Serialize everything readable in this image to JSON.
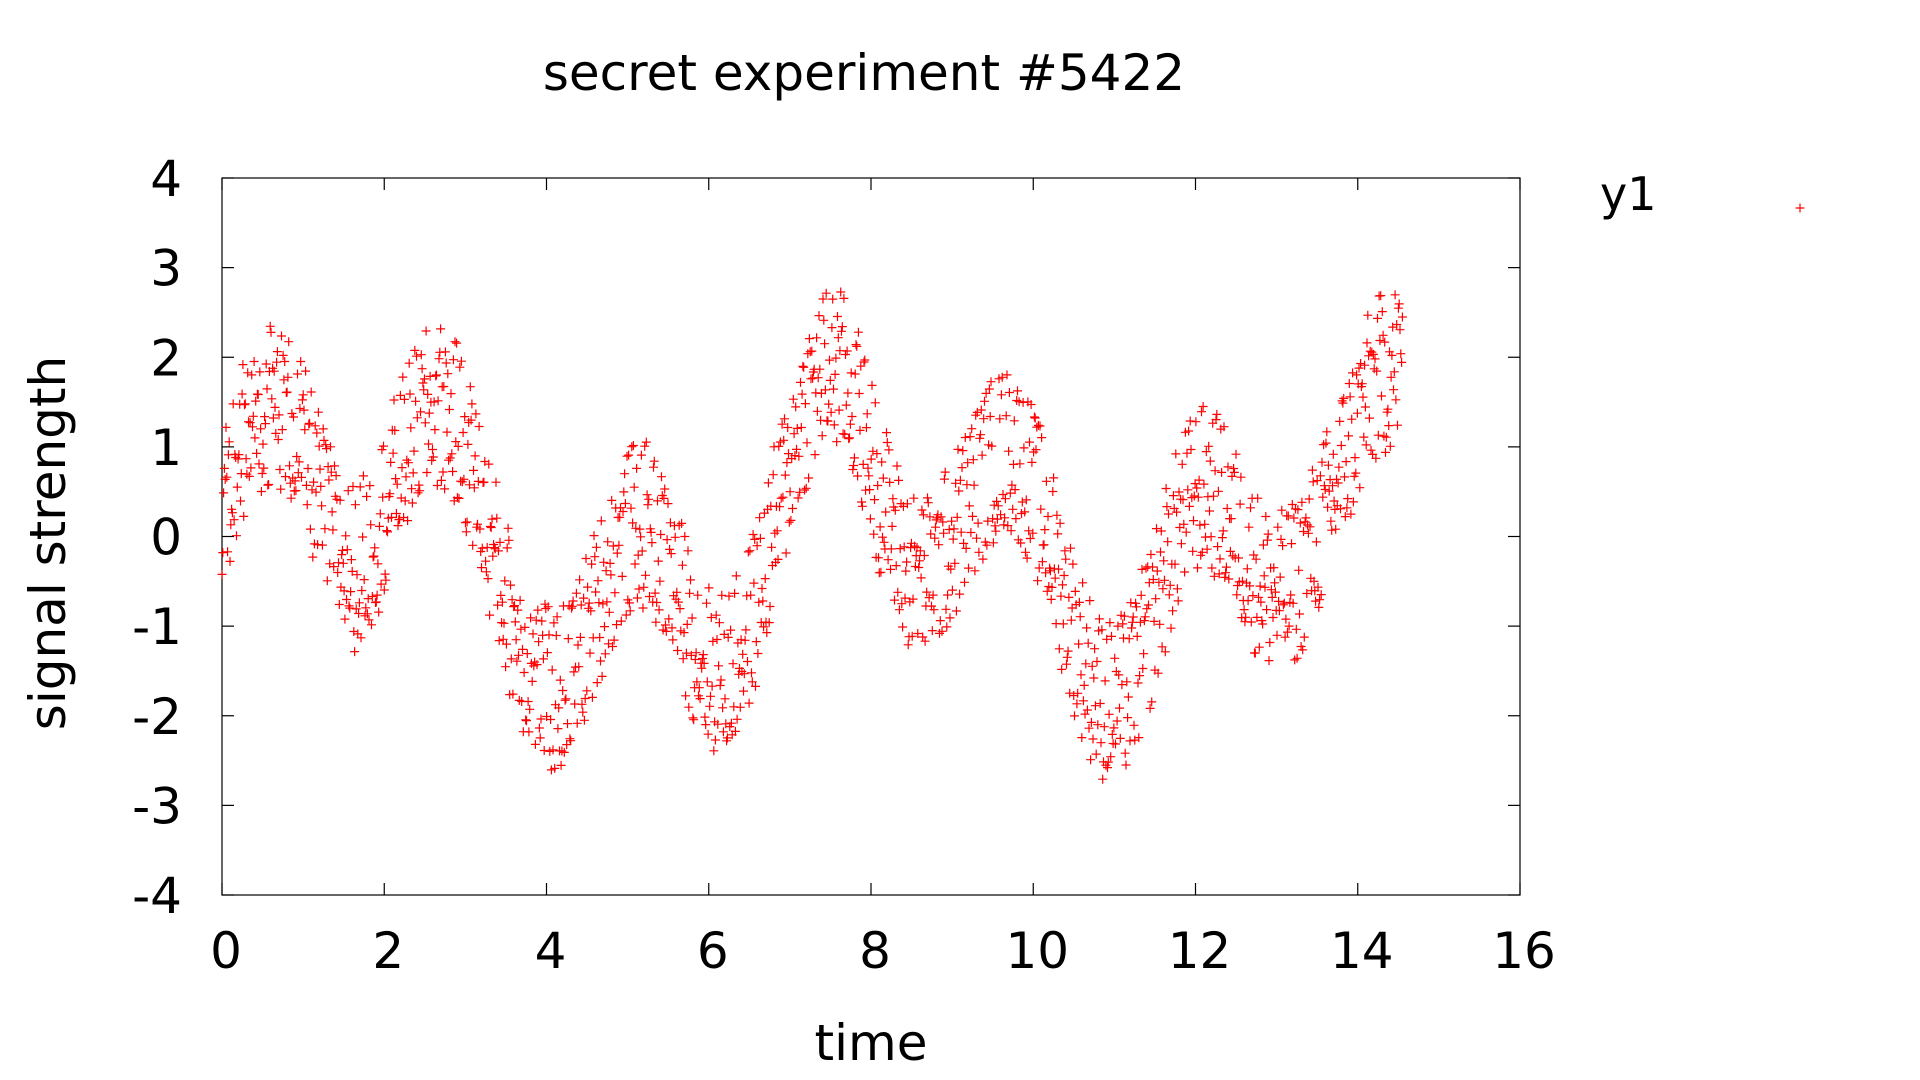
{
  "chart_data": {
    "type": "scatter",
    "title": "secret experiment #5422",
    "xlabel": "time",
    "ylabel": "signal strength",
    "xlim": [
      0,
      16
    ],
    "ylim": [
      -4,
      4
    ],
    "xticks": [
      "0",
      "2",
      "4",
      "6",
      "8",
      "10",
      "12",
      "14",
      "16"
    ],
    "yticks": [
      "4",
      "3",
      "2",
      "1",
      "0",
      "-1",
      "-2",
      "-3",
      "-4"
    ],
    "grid": false,
    "legend_position": "outside-right",
    "marker": "+",
    "color": "#ff0000",
    "series": [
      {
        "name": "y1",
        "x": [
          0.0,
          0.15,
          0.3,
          0.45,
          0.6,
          0.75,
          0.9,
          1.05,
          1.2,
          1.35,
          1.5,
          1.65,
          1.8,
          1.95,
          2.1,
          2.25,
          2.4,
          2.55,
          2.7,
          2.85,
          3.0,
          3.15,
          3.3,
          3.45,
          3.6,
          3.75,
          3.9,
          4.05,
          4.2,
          4.35,
          4.5,
          4.65,
          4.8,
          4.95,
          5.1,
          5.25,
          5.4,
          5.55,
          5.7,
          5.85,
          6.0,
          6.15,
          6.3,
          6.45,
          6.6,
          6.75,
          6.9,
          7.05,
          7.2,
          7.35,
          7.5,
          7.65,
          7.8,
          7.95,
          8.1,
          8.25,
          8.4,
          8.55,
          8.7,
          8.85,
          9.0,
          9.15,
          9.3,
          9.45,
          9.6,
          9.75,
          9.9,
          10.05,
          10.2,
          10.35,
          10.5,
          10.65,
          10.8,
          10.95,
          11.1,
          11.25,
          11.4,
          11.55,
          11.7,
          11.85,
          12.0,
          12.15,
          12.3,
          12.45,
          12.6,
          12.75,
          12.9,
          13.05,
          13.2,
          13.35,
          13.5,
          13.65,
          13.8,
          13.95,
          14.1,
          14.25,
          14.4,
          14.55
        ],
        "center": [
          0.2,
          0.8,
          1.15,
          1.4,
          1.5,
          1.4,
          1.2,
          0.85,
          0.45,
          0.05,
          -0.25,
          -0.35,
          -0.2,
          0.15,
          0.55,
          0.9,
          1.2,
          1.4,
          1.45,
          1.3,
          1.0,
          0.55,
          0.0,
          -0.55,
          -1.0,
          -1.35,
          -1.6,
          -1.75,
          -1.7,
          -1.45,
          -1.1,
          -0.7,
          -0.35,
          -0.05,
          0.15,
          0.1,
          -0.15,
          -0.45,
          -0.85,
          -1.2,
          -1.45,
          -1.55,
          -1.45,
          -1.15,
          -0.7,
          -0.15,
          0.45,
          1.0,
          1.45,
          1.75,
          1.9,
          1.8,
          1.5,
          1.05,
          0.55,
          0.1,
          -0.25,
          -0.45,
          -0.45,
          -0.3,
          -0.05,
          0.25,
          0.55,
          0.8,
          0.95,
          0.95,
          0.75,
          0.4,
          -0.05,
          -0.55,
          -1.05,
          -1.45,
          -1.75,
          -1.85,
          -1.8,
          -1.55,
          -1.15,
          -0.65,
          -0.15,
          0.25,
          0.5,
          0.55,
          0.4,
          0.15,
          -0.15,
          -0.4,
          -0.6,
          -0.65,
          -0.55,
          -0.3,
          0.0,
          0.35,
          0.75,
          1.15,
          1.5,
          1.75,
          1.9,
          1.95
        ],
        "spread": 0.95,
        "point_count": 1470
      }
    ]
  }
}
